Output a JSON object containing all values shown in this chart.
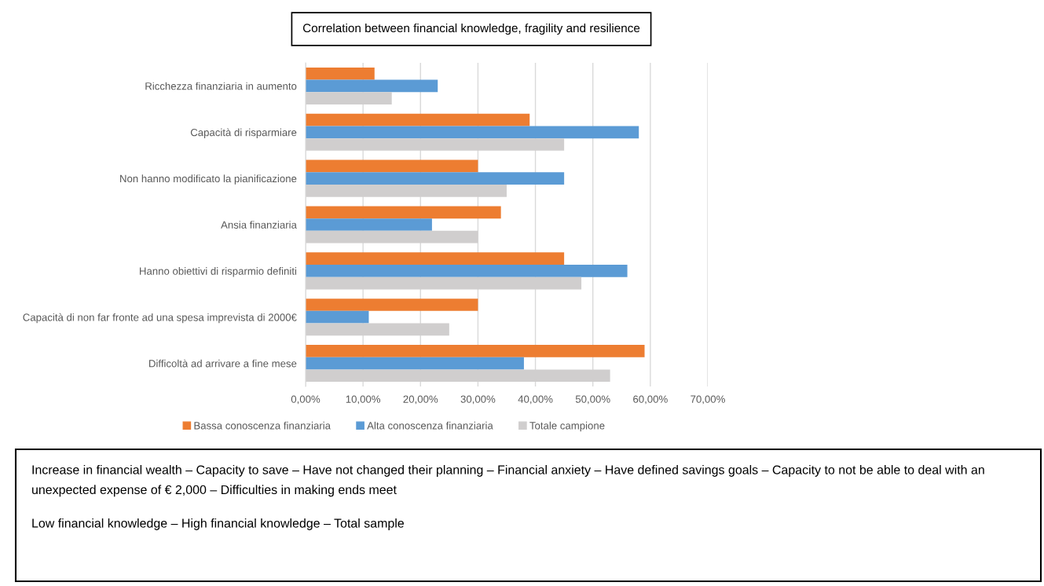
{
  "chart_data": {
    "type": "bar",
    "orientation": "horizontal",
    "title": "Correlation between financial knowledge, fragility and resilience",
    "categories": [
      "Ricchezza finanziaria in aumento",
      "Capacità di risparmiare",
      "Non hanno modificato la pianificazione",
      "Ansia finanziaria",
      "Hanno obiettivi di risparmio definiti",
      "Capacità di non far fronte ad una spesa imprevista di 2000€",
      "Difficoltà ad arrivare a fine mese"
    ],
    "series": [
      {
        "name": "Bassa conoscenza finanziaria",
        "color": "#ed7d31",
        "values": [
          12,
          39,
          30,
          34,
          45,
          30,
          59
        ]
      },
      {
        "name": "Alta conoscenza finanziaria",
        "color": "#5b9bd5",
        "values": [
          23,
          58,
          45,
          22,
          56,
          11,
          38
        ]
      },
      {
        "name": "Totale campione",
        "color": "#d0cece",
        "values": [
          15,
          45,
          35,
          30,
          48,
          25,
          53
        ]
      }
    ],
    "xlim": [
      0,
      70
    ],
    "xticks": [
      {
        "value": 0,
        "label": "0,00%"
      },
      {
        "value": 10,
        "label": "10,00%"
      },
      {
        "value": 20,
        "label": "20,00%"
      },
      {
        "value": 30,
        "label": "30,00%"
      },
      {
        "value": 40,
        "label": "40,00%"
      },
      {
        "value": 50,
        "label": "50,00%"
      },
      {
        "value": 60,
        "label": "60,00%"
      },
      {
        "value": 70,
        "label": "70,00%"
      }
    ],
    "grid": "x",
    "legend": "bottom",
    "annotations": [
      "Increase in financial wealth – Capacity to save – Have not changed their planning – Financial anxiety – Have defined savings goals – Capacity to not be able to deal with an unexpected expense of € 2,000 – Difficulties in making ends meet",
      "Low financial knowledge – High financial knowledge – Total sample"
    ]
  }
}
